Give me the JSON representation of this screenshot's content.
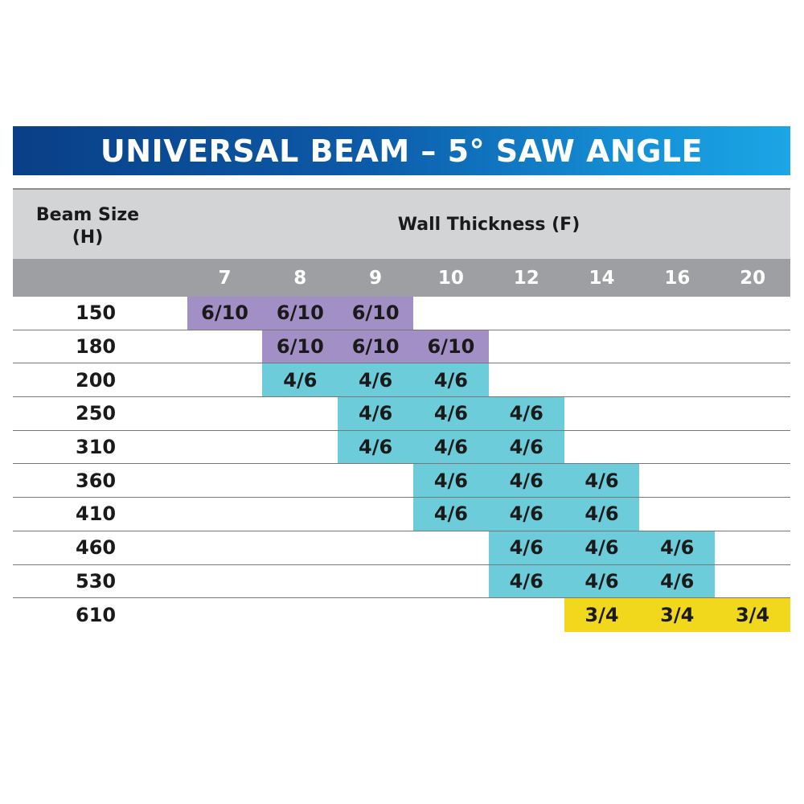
{
  "title": "UNIVERSAL BEAM – 5° SAW ANGLE",
  "header": {
    "beam_size_label": "Beam Size\n(H)",
    "wall_thickness_label": "Wall Thickness (F)"
  },
  "columns": [
    "7",
    "8",
    "9",
    "10",
    "12",
    "14",
    "16",
    "20"
  ],
  "colors": {
    "purple": "#a28fc5",
    "cyan": "#6cccd9",
    "yellow": "#f2d81c"
  },
  "rows": [
    {
      "size": "150",
      "cells": [
        "6/10",
        "6/10",
        "6/10",
        "",
        "",
        "",
        "",
        ""
      ],
      "colors": [
        "purple",
        "purple",
        "purple",
        "",
        "",
        "",
        "",
        ""
      ]
    },
    {
      "size": "180",
      "cells": [
        "",
        "6/10",
        "6/10",
        "6/10",
        "",
        "",
        "",
        ""
      ],
      "colors": [
        "",
        "purple",
        "purple",
        "purple",
        "",
        "",
        "",
        ""
      ]
    },
    {
      "size": "200",
      "cells": [
        "",
        "4/6",
        "4/6",
        "4/6",
        "",
        "",
        "",
        ""
      ],
      "colors": [
        "",
        "cyan",
        "cyan",
        "cyan",
        "",
        "",
        "",
        ""
      ]
    },
    {
      "size": "250",
      "cells": [
        "",
        "",
        "4/6",
        "4/6",
        "4/6",
        "",
        "",
        ""
      ],
      "colors": [
        "",
        "",
        "cyan",
        "cyan",
        "cyan",
        "",
        "",
        ""
      ]
    },
    {
      "size": "310",
      "cells": [
        "",
        "",
        "4/6",
        "4/6",
        "4/6",
        "",
        "",
        ""
      ],
      "colors": [
        "",
        "",
        "cyan",
        "cyan",
        "cyan",
        "",
        "",
        ""
      ]
    },
    {
      "size": "360",
      "cells": [
        "",
        "",
        "",
        "4/6",
        "4/6",
        "4/6",
        "",
        ""
      ],
      "colors": [
        "",
        "",
        "",
        "cyan",
        "cyan",
        "cyan",
        "",
        ""
      ]
    },
    {
      "size": "410",
      "cells": [
        "",
        "",
        "",
        "4/6",
        "4/6",
        "4/6",
        "",
        ""
      ],
      "colors": [
        "",
        "",
        "",
        "cyan",
        "cyan",
        "cyan",
        "",
        ""
      ]
    },
    {
      "size": "460",
      "cells": [
        "",
        "",
        "",
        "",
        "4/6",
        "4/6",
        "4/6",
        ""
      ],
      "colors": [
        "",
        "",
        "",
        "",
        "cyan",
        "cyan",
        "cyan",
        ""
      ]
    },
    {
      "size": "530",
      "cells": [
        "",
        "",
        "",
        "",
        "4/6",
        "4/6",
        "4/6",
        ""
      ],
      "colors": [
        "",
        "",
        "",
        "",
        "cyan",
        "cyan",
        "cyan",
        ""
      ]
    },
    {
      "size": "610",
      "cells": [
        "",
        "",
        "",
        "",
        "",
        "3/4",
        "3/4",
        "3/4"
      ],
      "colors": [
        "",
        "",
        "",
        "",
        "",
        "yellow",
        "yellow",
        "yellow"
      ]
    }
  ]
}
